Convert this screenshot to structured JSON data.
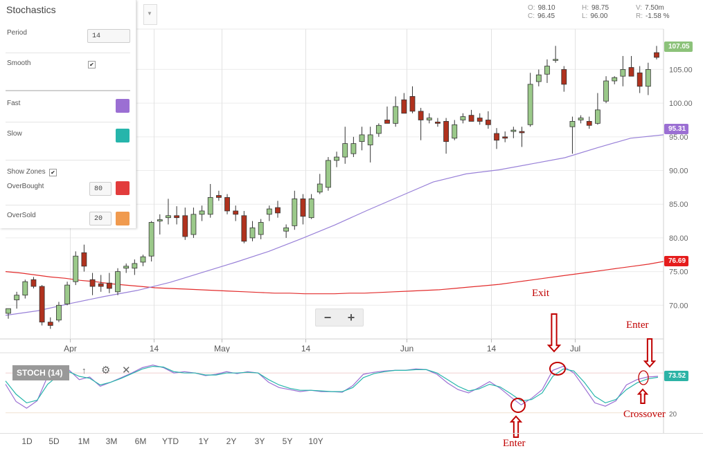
{
  "chart_data": {
    "type": "candlestick",
    "ylim": [
      65,
      111
    ],
    "y_ticks": [
      70,
      75,
      80,
      85,
      90,
      95,
      100,
      105
    ],
    "y_tick_labels": [
      "70.00",
      "75.00",
      "80.00",
      "85.00",
      "90.00",
      "95.00",
      "100.00",
      "105.00"
    ],
    "x_tick_labels": [
      "Apr",
      "14",
      "May",
      "14",
      "Jun",
      "14",
      "Jul"
    ],
    "candles": [
      {
        "o": 68.8,
        "h": 69.5,
        "l": 68.0,
        "c": 69.5
      },
      {
        "o": 70.8,
        "h": 72.0,
        "l": 69.5,
        "c": 71.5
      },
      {
        "o": 71.5,
        "h": 73.8,
        "l": 71.0,
        "c": 73.5
      },
      {
        "o": 73.8,
        "h": 74.2,
        "l": 72.5,
        "c": 72.8
      },
      {
        "o": 72.8,
        "h": 73.0,
        "l": 67.0,
        "c": 67.5
      },
      {
        "o": 67.5,
        "h": 68.2,
        "l": 66.5,
        "c": 67.0
      },
      {
        "o": 67.8,
        "h": 70.5,
        "l": 67.5,
        "c": 70.0
      },
      {
        "o": 70.2,
        "h": 73.5,
        "l": 70.0,
        "c": 73.0
      },
      {
        "o": 73.5,
        "h": 78.0,
        "l": 73.0,
        "c": 77.3
      },
      {
        "o": 77.8,
        "h": 79.0,
        "l": 75.0,
        "c": 75.8
      },
      {
        "o": 73.8,
        "h": 74.8,
        "l": 71.5,
        "c": 72.8
      },
      {
        "o": 73.2,
        "h": 74.5,
        "l": 72.0,
        "c": 72.8
      },
      {
        "o": 73.3,
        "h": 74.8,
        "l": 71.8,
        "c": 72.5
      },
      {
        "o": 72.0,
        "h": 75.5,
        "l": 71.5,
        "c": 75.0
      },
      {
        "o": 75.5,
        "h": 76.2,
        "l": 74.8,
        "c": 75.8
      },
      {
        "o": 75.5,
        "h": 76.8,
        "l": 74.5,
        "c": 76.2
      },
      {
        "o": 76.4,
        "h": 77.5,
        "l": 75.8,
        "c": 77.2
      },
      {
        "o": 77.3,
        "h": 82.5,
        "l": 76.5,
        "c": 82.3
      },
      {
        "o": 82.5,
        "h": 83.5,
        "l": 80.5,
        "c": 82.7
      },
      {
        "o": 83.0,
        "h": 85.8,
        "l": 82.0,
        "c": 83.3
      },
      {
        "o": 83.3,
        "h": 84.7,
        "l": 82.0,
        "c": 83.0
      },
      {
        "o": 83.3,
        "h": 84.5,
        "l": 79.7,
        "c": 80.2
      },
      {
        "o": 80.5,
        "h": 84.5,
        "l": 80.0,
        "c": 83.5
      },
      {
        "o": 83.5,
        "h": 84.8,
        "l": 82.5,
        "c": 84.0
      },
      {
        "o": 83.5,
        "h": 88.0,
        "l": 83.0,
        "c": 86.0
      },
      {
        "o": 86.3,
        "h": 87.0,
        "l": 85.5,
        "c": 86.0
      },
      {
        "o": 86.0,
        "h": 86.5,
        "l": 83.5,
        "c": 84.0
      },
      {
        "o": 84.0,
        "h": 84.8,
        "l": 82.5,
        "c": 83.5
      },
      {
        "o": 83.3,
        "h": 84.0,
        "l": 79.2,
        "c": 79.5
      },
      {
        "o": 80.0,
        "h": 82.5,
        "l": 79.5,
        "c": 81.5
      },
      {
        "o": 80.5,
        "h": 82.8,
        "l": 79.8,
        "c": 82.3
      },
      {
        "o": 83.5,
        "h": 84.8,
        "l": 82.5,
        "c": 84.3
      },
      {
        "o": 84.5,
        "h": 85.5,
        "l": 83.0,
        "c": 83.7
      },
      {
        "o": 81.0,
        "h": 82.0,
        "l": 80.0,
        "c": 81.5
      },
      {
        "o": 81.8,
        "h": 87.0,
        "l": 81.2,
        "c": 85.8
      },
      {
        "o": 85.8,
        "h": 86.5,
        "l": 82.0,
        "c": 83.2
      },
      {
        "o": 83.0,
        "h": 86.5,
        "l": 82.8,
        "c": 85.8
      },
      {
        "o": 86.8,
        "h": 89.5,
        "l": 86.5,
        "c": 88.0
      },
      {
        "o": 87.5,
        "h": 92.0,
        "l": 87.0,
        "c": 91.5
      },
      {
        "o": 91.5,
        "h": 92.8,
        "l": 90.5,
        "c": 92.0
      },
      {
        "o": 92.0,
        "h": 96.5,
        "l": 91.0,
        "c": 94.0
      },
      {
        "o": 92.5,
        "h": 95.0,
        "l": 92.0,
        "c": 94.0
      },
      {
        "o": 94.3,
        "h": 96.5,
        "l": 93.0,
        "c": 95.3
      },
      {
        "o": 93.8,
        "h": 96.5,
        "l": 91.2,
        "c": 95.3
      },
      {
        "o": 95.5,
        "h": 97.0,
        "l": 95.0,
        "c": 96.7
      },
      {
        "o": 97.5,
        "h": 99.5,
        "l": 97.0,
        "c": 97.0
      },
      {
        "o": 97.0,
        "h": 101.0,
        "l": 96.5,
        "c": 99.5
      },
      {
        "o": 100.5,
        "h": 101.5,
        "l": 98.5,
        "c": 98.5
      },
      {
        "o": 101.0,
        "h": 102.5,
        "l": 98.5,
        "c": 98.8
      },
      {
        "o": 98.8,
        "h": 99.3,
        "l": 94.5,
        "c": 97.5
      },
      {
        "o": 97.5,
        "h": 98.5,
        "l": 97.0,
        "c": 97.8
      },
      {
        "o": 97.2,
        "h": 97.8,
        "l": 96.5,
        "c": 97.0
      },
      {
        "o": 97.3,
        "h": 97.8,
        "l": 92.5,
        "c": 94.3
      },
      {
        "o": 94.8,
        "h": 97.5,
        "l": 94.5,
        "c": 96.8
      },
      {
        "o": 97.5,
        "h": 98.5,
        "l": 97.0,
        "c": 98.0
      },
      {
        "o": 98.2,
        "h": 99.0,
        "l": 97.3,
        "c": 97.3
      },
      {
        "o": 97.8,
        "h": 98.5,
        "l": 96.8,
        "c": 97.3
      },
      {
        "o": 97.5,
        "h": 98.8,
        "l": 96.2,
        "c": 96.8
      },
      {
        "o": 95.5,
        "h": 96.3,
        "l": 93.2,
        "c": 94.5
      },
      {
        "o": 95.0,
        "h": 95.8,
        "l": 94.2,
        "c": 94.8
      },
      {
        "o": 95.8,
        "h": 96.5,
        "l": 94.8,
        "c": 96.0
      },
      {
        "o": 95.8,
        "h": 96.5,
        "l": 93.5,
        "c": 95.6
      },
      {
        "o": 96.8,
        "h": 104.5,
        "l": 96.5,
        "c": 102.8
      },
      {
        "o": 103.2,
        "h": 105.0,
        "l": 102.5,
        "c": 104.2
      },
      {
        "o": 104.3,
        "h": 106.5,
        "l": 103.0,
        "c": 105.5
      },
      {
        "o": 106.5,
        "h": 108.5,
        "l": 106.0,
        "c": 106.5
      },
      {
        "o": 105.0,
        "h": 105.5,
        "l": 101.7,
        "c": 102.8
      },
      {
        "o": 96.5,
        "h": 98.0,
        "l": 92.5,
        "c": 97.3
      },
      {
        "o": 97.5,
        "h": 98.2,
        "l": 97.0,
        "c": 97.8
      },
      {
        "o": 97.3,
        "h": 98.0,
        "l": 96.2,
        "c": 96.7
      },
      {
        "o": 97.0,
        "h": 101.5,
        "l": 96.8,
        "c": 99.0
      },
      {
        "o": 100.3,
        "h": 104.0,
        "l": 100.0,
        "c": 103.3
      },
      {
        "o": 103.3,
        "h": 104.0,
        "l": 102.8,
        "c": 103.8
      },
      {
        "o": 104.0,
        "h": 107.0,
        "l": 102.5,
        "c": 105.0
      },
      {
        "o": 105.3,
        "h": 107.0,
        "l": 104.0,
        "c": 104.0
      },
      {
        "o": 104.5,
        "h": 105.5,
        "l": 101.5,
        "c": 102.5
      },
      {
        "o": 102.5,
        "h": 106.0,
        "l": 101.2,
        "c": 105.0
      },
      {
        "o": 107.5,
        "h": 108.5,
        "l": 106.5,
        "c": 106.8
      }
    ],
    "ma_slow": [
      75.0,
      74.8,
      74.5,
      74.2,
      74.0,
      73.7,
      73.5,
      73.2,
      73.0,
      72.8,
      72.6,
      72.5,
      72.4,
      72.3,
      72.2,
      72.1,
      72.0,
      71.9,
      71.8,
      71.8,
      71.7,
      71.7,
      71.7,
      71.8,
      71.8,
      71.9,
      72.0,
      72.1,
      72.2,
      72.3,
      72.5,
      72.7,
      72.9,
      73.1,
      73.4,
      73.7,
      74.0,
      74.3,
      74.6,
      74.9,
      75.2,
      75.5,
      75.8,
      76.1,
      76.5
    ],
    "ma_fast": [
      68.5,
      69.2,
      70.3,
      71.3,
      72.2,
      73.4,
      74.9,
      76.4,
      78.0,
      79.9,
      81.9,
      84.1,
      86.2,
      88.3,
      89.5,
      90.1,
      91.0,
      91.9,
      93.4,
      94.8,
      95.3
    ],
    "ma_fast_last": "95.31",
    "ma_slow_last": "76.69",
    "last_price": "107.05",
    "stoch": {
      "label": "STOCH (14)",
      "level_label": "20",
      "last_value": "73.52",
      "k": [
        63,
        37,
        27,
        38,
        75,
        79,
        85,
        70,
        74,
        60,
        66,
        73,
        80,
        88,
        92,
        88,
        80,
        82,
        80,
        76,
        78,
        82,
        79,
        82,
        80,
        66,
        58,
        55,
        52,
        54,
        52,
        52,
        51,
        61,
        78,
        81,
        83,
        84,
        84,
        86,
        85,
        78,
        65,
        55,
        50,
        58,
        67,
        57,
        44,
        32,
        42,
        55,
        84,
        90,
        80,
        58,
        35,
        30,
        38,
        62,
        70,
        74,
        75
      ],
      "d": [
        68,
        48,
        35,
        39,
        63,
        76,
        82,
        75,
        72,
        62,
        66,
        72,
        79,
        86,
        90,
        89,
        82,
        80,
        80,
        77,
        77,
        80,
        80,
        81,
        80,
        70,
        62,
        57,
        54,
        54,
        53,
        52,
        52,
        58,
        73,
        79,
        82,
        84,
        84,
        85,
        85,
        80,
        70,
        60,
        53,
        56,
        63,
        59,
        49,
        38,
        40,
        50,
        75,
        86,
        83,
        66,
        45,
        35,
        40,
        55,
        65,
        71,
        73.5
      ]
    }
  },
  "settings": {
    "title": "Stochastics",
    "period_label": "Period",
    "period_value": "14",
    "smooth_label": "Smooth",
    "fast_label": "Fast",
    "fast_color": "#9b6fd3",
    "slow_label": "Slow",
    "slow_color": "#26b5ab",
    "show_zones_label": "Show Zones",
    "overbought_label": "OverBought",
    "overbought_value": "80",
    "overbought_color": "#e23c3c",
    "oversold_label": "OverSold",
    "oversold_value": "20",
    "oversold_color": "#f09a4e"
  },
  "ohlc": {
    "o_label": "O:",
    "o_value": "98.10",
    "h_label": "H:",
    "h_value": "98.75",
    "v_label": "V:",
    "v_value": "7.50m",
    "c_label": "C:",
    "c_value": "96.45",
    "l_label": "L:",
    "l_value": "96.00",
    "r_label": "R:",
    "r_value": "-1.58 %"
  },
  "zoom": {
    "minus": "−",
    "plus": "+"
  },
  "ranges": [
    "1D",
    "5D",
    "1M",
    "3M",
    "6M",
    "YTD",
    "1Y",
    "2Y",
    "3Y",
    "5Y",
    "10Y"
  ],
  "annotations": {
    "exit": "Exit",
    "enter_top": "Enter",
    "enter_bottom": "Enter",
    "crossover": "Crossover"
  },
  "colors": {
    "bull": "#9bc98a",
    "bear": "#b0321e",
    "slow_ma": "#e22b2b",
    "fast_ma": "#9880d8",
    "annotation": "#c00000"
  }
}
